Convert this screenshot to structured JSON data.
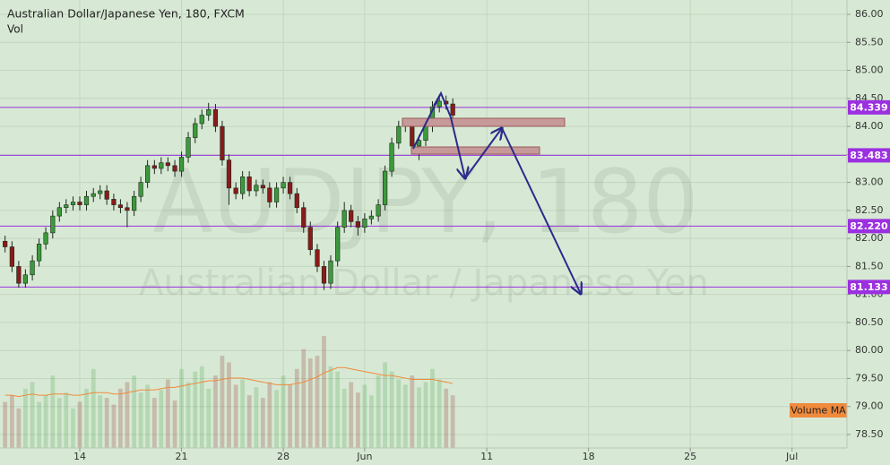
{
  "chart_data": {
    "type": "candlestick",
    "title": "Australian Dollar/Japanese Yen, 180, FXCM",
    "volume_label": "Vol",
    "watermark": "AUDJPY, 180",
    "watermark_subtitle": "Australian Dollar / Japanese Yen",
    "x": [
      -3.67,
      -3.33,
      -3,
      -2.67,
      -2.33,
      -2,
      -1.67,
      -1.33,
      -1,
      -0.67,
      -0.33,
      0,
      0.33,
      0.67,
      1,
      1.33,
      1.67,
      2,
      2.33,
      2.67,
      3,
      3.33,
      3.67,
      4,
      4.33,
      4.67,
      5,
      5.33,
      5.67,
      6,
      6.33,
      6.67,
      7,
      7.33,
      7.67,
      8,
      8.33,
      8.67,
      9,
      9.33,
      9.67,
      10,
      10.33,
      10.67,
      11,
      11.33,
      11.67,
      12,
      12.33,
      12.67,
      13,
      13.33,
      13.67,
      14,
      14.33,
      14.67,
      15,
      15.33,
      15.67,
      16,
      16.33,
      16.67,
      17,
      17.33,
      17.67,
      18,
      18.33
    ],
    "open": [
      81.95,
      81.85,
      81.5,
      81.2,
      81.35,
      81.6,
      81.9,
      82.1,
      82.4,
      82.55,
      82.6,
      82.65,
      82.6,
      82.75,
      82.8,
      82.85,
      82.7,
      82.6,
      82.55,
      82.5,
      82.75,
      83.0,
      83.3,
      83.25,
      83.35,
      83.3,
      83.2,
      83.45,
      83.8,
      84.05,
      84.2,
      84.3,
      84.0,
      83.4,
      82.9,
      82.8,
      83.1,
      82.85,
      82.95,
      82.9,
      82.65,
      82.9,
      83.0,
      82.8,
      82.55,
      82.2,
      81.8,
      81.5,
      81.2,
      81.6,
      82.2,
      82.5,
      82.3,
      82.2,
      82.35,
      82.4,
      82.6,
      83.2,
      83.7,
      84.0,
      84.05,
      83.65,
      83.75,
      84.0,
      84.35,
      84.45,
      84.4
    ],
    "high": [
      82.05,
      81.95,
      81.6,
      81.45,
      81.7,
      82.0,
      82.2,
      82.5,
      82.65,
      82.7,
      82.75,
      82.75,
      82.85,
      82.9,
      82.95,
      82.95,
      82.8,
      82.7,
      82.65,
      82.85,
      83.1,
      83.4,
      83.4,
      83.45,
      83.45,
      83.4,
      83.55,
      83.9,
      84.15,
      84.3,
      84.42,
      84.4,
      84.1,
      83.5,
      83.0,
      83.2,
      83.2,
      83.05,
      83.05,
      83.0,
      83.0,
      83.1,
      83.1,
      82.9,
      82.65,
      82.3,
      81.9,
      81.6,
      81.7,
      82.3,
      82.65,
      82.6,
      82.4,
      82.45,
      82.5,
      82.7,
      83.3,
      83.8,
      84.1,
      84.15,
      84.15,
      83.85,
      84.1,
      84.45,
      84.55,
      84.55,
      84.5
    ],
    "low": [
      81.75,
      81.4,
      81.12,
      81.12,
      81.25,
      81.5,
      81.8,
      82.0,
      82.3,
      82.45,
      82.5,
      82.5,
      82.5,
      82.65,
      82.7,
      82.6,
      82.5,
      82.45,
      82.2,
      82.4,
      82.65,
      82.9,
      83.15,
      83.15,
      83.2,
      83.1,
      83.1,
      83.35,
      83.7,
      83.95,
      84.1,
      83.9,
      83.3,
      82.6,
      82.7,
      82.7,
      82.75,
      82.75,
      82.8,
      82.55,
      82.55,
      82.8,
      82.7,
      82.45,
      82.1,
      81.7,
      81.4,
      81.08,
      81.1,
      81.5,
      82.1,
      82.2,
      82.05,
      82.1,
      82.25,
      82.3,
      82.5,
      83.1,
      83.6,
      83.9,
      83.55,
      83.4,
      83.65,
      83.9,
      84.25,
      84.3,
      84.1
    ],
    "close": [
      81.85,
      81.5,
      81.2,
      81.35,
      81.6,
      81.9,
      82.1,
      82.4,
      82.55,
      82.6,
      82.65,
      82.6,
      82.75,
      82.8,
      82.85,
      82.7,
      82.6,
      82.55,
      82.5,
      82.75,
      83.0,
      83.3,
      83.25,
      83.35,
      83.3,
      83.2,
      83.45,
      83.8,
      84.05,
      84.2,
      84.3,
      84.0,
      83.4,
      82.9,
      82.8,
      83.1,
      82.85,
      82.95,
      82.9,
      82.65,
      82.9,
      83.0,
      82.8,
      82.55,
      82.2,
      81.8,
      81.5,
      81.2,
      81.6,
      82.2,
      82.5,
      82.3,
      82.2,
      82.35,
      82.4,
      82.6,
      83.2,
      83.7,
      84.0,
      84.05,
      83.65,
      83.75,
      84.0,
      84.35,
      84.45,
      84.4,
      84.2
    ],
    "up_color": "#3c9a3c",
    "down_color": "#8b1a1a",
    "xlim": [
      -3.92,
      37.7
    ],
    "xticks": [
      {
        "value": 0,
        "label": "14"
      },
      {
        "value": 5,
        "label": "21"
      },
      {
        "value": 10,
        "label": "28"
      },
      {
        "value": 14,
        "label": "Jun"
      },
      {
        "value": 20,
        "label": "11"
      },
      {
        "value": 25,
        "label": "18"
      },
      {
        "value": 30,
        "label": "25"
      },
      {
        "value": 35,
        "label": "Jul"
      }
    ],
    "ylim": [
      78.26,
      86.256
    ],
    "yticks": [
      {
        "value": 78.5,
        "label": "78.50"
      },
      {
        "value": 79,
        "label": "79.00"
      },
      {
        "value": 79.5,
        "label": "79.50"
      },
      {
        "value": 80,
        "label": "80.00"
      },
      {
        "value": 80.5,
        "label": "80.50"
      },
      {
        "value": 81,
        "label": "81.00"
      },
      {
        "value": 81.5,
        "label": "81.50"
      },
      {
        "value": 82,
        "label": "82.00"
      },
      {
        "value": 82.5,
        "label": "82.50"
      },
      {
        "value": 83,
        "label": "83.00"
      },
      {
        "value": 83.5,
        "label": "83.50"
      },
      {
        "value": 84,
        "label": "84.00"
      },
      {
        "value": 84.5,
        "label": "84.50"
      },
      {
        "value": 85,
        "label": "85.00"
      },
      {
        "value": 85.5,
        "label": "85.50"
      },
      {
        "value": 86,
        "label": "86.00"
      }
    ],
    "grid": true,
    "hlines": [
      84.339,
      83.483,
      {
        "value": 82.22,
        "label": "82.220"
      },
      81.133
    ],
    "hline_color": "#9b30e0",
    "volume": {
      "values": [
        35,
        40,
        30,
        45,
        50,
        35,
        40,
        55,
        38,
        42,
        30,
        35,
        45,
        60,
        40,
        38,
        33,
        45,
        50,
        55,
        42,
        48,
        38,
        44,
        52,
        36,
        60,
        50,
        58,
        62,
        45,
        55,
        70,
        65,
        48,
        52,
        40,
        46,
        38,
        50,
        44,
        55,
        48,
        60,
        75,
        68,
        70,
        85,
        62,
        58,
        45,
        50,
        42,
        48,
        40,
        55,
        65,
        58,
        52,
        48,
        55,
        46,
        50,
        60,
        52,
        45,
        40
      ],
      "ma_name": "Volume MA",
      "ma": [
        40,
        40,
        39,
        40,
        41,
        40,
        40,
        41,
        41,
        41,
        40,
        40,
        41,
        42,
        42,
        42,
        41,
        41,
        42,
        43,
        44,
        44,
        44,
        45,
        46,
        46,
        47,
        48,
        49,
        50,
        51,
        51,
        52,
        53,
        53,
        53,
        52,
        51,
        50,
        49,
        48,
        48,
        48,
        49,
        50,
        52,
        54,
        57,
        59,
        61,
        61,
        60,
        59,
        58,
        57,
        56,
        55,
        55,
        54,
        53,
        52,
        52,
        52,
        52,
        51,
        50,
        49
      ],
      "ma_color": "#f08a3c"
    }
  }
}
